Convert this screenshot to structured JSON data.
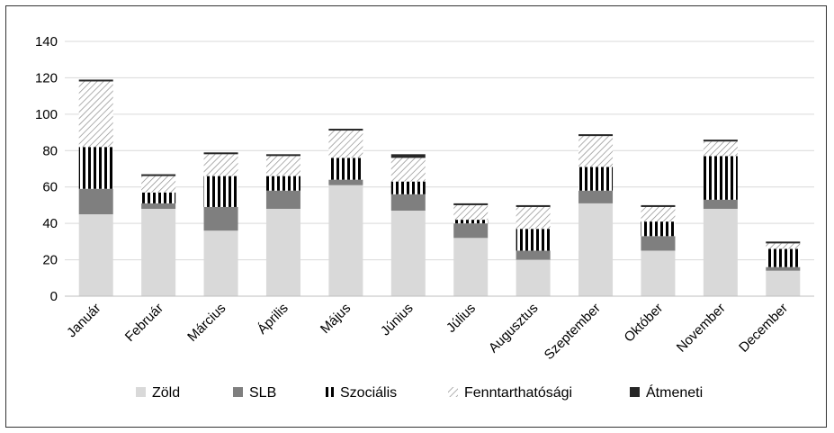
{
  "chart_data": {
    "type": "bar",
    "stacked": true,
    "categories": [
      "Január",
      "Február",
      "Március",
      "Április",
      "Május",
      "Június",
      "Július",
      "Augusztus",
      "Szeptember",
      "Október",
      "November",
      "December"
    ],
    "series": [
      {
        "name": "Zöld",
        "color": "#d9d9d9",
        "pattern": "solid",
        "values": [
          45,
          48,
          36,
          48,
          61,
          47,
          32,
          20,
          51,
          25,
          48,
          14
        ]
      },
      {
        "name": "SLB",
        "color": "#7f7f7f",
        "pattern": "solid",
        "values": [
          14,
          3,
          13,
          10,
          3,
          9,
          8,
          5,
          7,
          8,
          5,
          2
        ]
      },
      {
        "name": "Szociális",
        "color": "#000000",
        "pattern": "vertical-stripes",
        "values": [
          23,
          6,
          17,
          8,
          12,
          7,
          2,
          12,
          13,
          8,
          24,
          10
        ]
      },
      {
        "name": "Fenntarthatósági",
        "color": "#8c8c8c",
        "pattern": "diagonal-hatch",
        "values": [
          36,
          9,
          12,
          11,
          15,
          13,
          8,
          12,
          17,
          8,
          8,
          3
        ]
      },
      {
        "name": "Átmeneti",
        "color": "#262626",
        "pattern": "solid",
        "values": [
          1,
          1,
          1,
          1,
          1,
          2,
          1,
          1,
          1,
          1,
          1,
          1
        ]
      }
    ],
    "ylim": [
      0,
      140
    ],
    "y_ticks": [
      0,
      20,
      40,
      60,
      80,
      100,
      120,
      140
    ],
    "grid": true,
    "legend_position": "bottom"
  }
}
